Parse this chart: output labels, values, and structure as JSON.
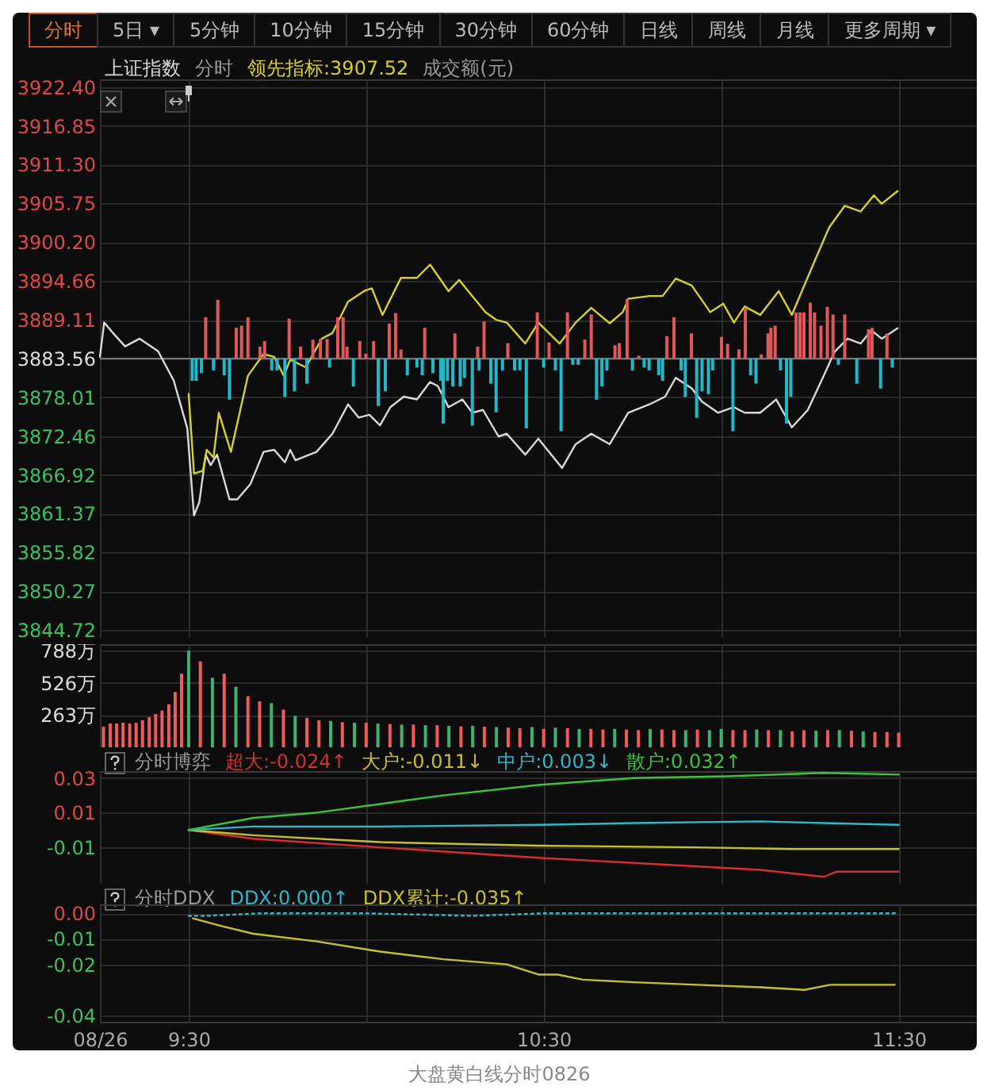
{
  "chart_data": [
    {
      "type": "other",
      "annotations": [
        "分时",
        "5日 ▾",
        "5分钟",
        "10分钟",
        "15分钟",
        "30分钟",
        "60分钟",
        "日线",
        "周线",
        "月线",
        "更多周期 ▾"
      ]
    },
    {
      "type": "line",
      "legend": "top left",
      "grid": true,
      "tick_labels": "y",
      "annotations": [
        "分时",
        "成交额(元)"
      ],
      "xlim": [
        9.25,
        11.72
      ],
      "xticks": [
        {
          "value": 9.25,
          "label": null
        },
        {
          "value": 9.5,
          "label": null
        },
        {
          "value": 10,
          "label": null
        },
        {
          "value": 10.5,
          "label": null
        },
        {
          "value": 11,
          "label": null
        },
        {
          "value": 11.5,
          "label": null
        }
      ],
      "ylim": [
        3843.6,
        3923.5
      ],
      "yticks": [
        {
          "value": 3922.4,
          "label": "3922.40"
        },
        {
          "value": 3916.85,
          "label": "3916.85"
        },
        {
          "value": 3911.3,
          "label": "3911.30"
        },
        {
          "value": 3905.75,
          "label": "3905.75"
        },
        {
          "value": 3900.2,
          "label": "3900.20"
        },
        {
          "value": 3894.66,
          "label": "3894.66"
        },
        {
          "value": 3889.11,
          "label": "3889.11"
        },
        {
          "value": 3883.56,
          "label": "3883.56"
        },
        {
          "value": 3878.01,
          "label": "3878.01"
        },
        {
          "value": 3872.46,
          "label": "3872.46"
        },
        {
          "value": 3866.92,
          "label": "3866.92"
        },
        {
          "value": 3861.37,
          "label": "3861.37"
        },
        {
          "value": 3855.82,
          "label": "3855.82"
        },
        {
          "value": 3850.27,
          "label": "3850.27"
        },
        {
          "value": 3844.72,
          "label": "3844.72"
        }
      ],
      "ref_lines": [
        {
          "axis": "y",
          "value": 3883.56,
          "color": "#777777"
        }
      ],
      "series": [
        {
          "type": "bar",
          "color": "#e0585a",
          "x": [
            9.548,
            9.582,
            9.634,
            9.649,
            9.667,
            9.701,
            9.714,
            9.783,
            9.815,
            9.85,
            9.871,
            9.89,
            9.92,
            9.935,
            9.946,
            9.982,
            9.999,
            10.021,
            10.065,
            10.083,
            10.098,
            10.165,
            10.25,
            10.314,
            10.332,
            10.399,
            10.482,
            10.515,
            10.567,
            10.616,
            10.634,
            10.701,
            10.713,
            10.735,
            10.768,
            10.847,
            10.867,
            10.916,
            11.001,
            11.018,
            11.05,
            11.068,
            11.113,
            11.132,
            11.14,
            11.152,
            11.211,
            11.222,
            11.233,
            11.251,
            11.263,
            11.281,
            11.299,
            11.315,
            11.348,
            11.415,
            11.425,
            11.467
          ],
          "base": [
            3883.56,
            3883.56,
            3883.56,
            3883.56,
            3883.56,
            3883.56,
            3883.56,
            3883.56,
            3883.56,
            3883.56,
            3883.56,
            3883.56,
            3883.56,
            3883.56,
            3883.56,
            3883.56,
            3883.56,
            3883.56,
            3883.56,
            3883.56,
            3883.56,
            3883.56,
            3883.56,
            3883.56,
            3883.56,
            3883.56,
            3883.56,
            3883.56,
            3883.56,
            3883.56,
            3883.56,
            3883.56,
            3883.56,
            3883.56,
            3883.56,
            3883.56,
            3883.56,
            3883.56,
            3883.56,
            3883.56,
            3883.56,
            3883.56,
            3883.56,
            3883.56,
            3883.56,
            3883.56,
            3883.56,
            3883.56,
            3883.56,
            3883.56,
            3883.56,
            3883.56,
            3883.56,
            3883.56,
            3883.56,
            3883.56,
            3883.56,
            3883.56
          ],
          "values": [
            5.9,
            8.4,
            4.4,
            4.7,
            5.9,
            1.7,
            2.5,
            5.7,
            1.7,
            2.7,
            2.8,
            2.8,
            5.9,
            5.9,
            1.7,
            2.5,
            0.7,
            2.5,
            5.0,
            6.5,
            1.3,
            4.4,
            3.6,
            1.7,
            5.3,
            2.2,
            6.6,
            2.3,
            6.6,
            2.7,
            6.3,
            1.9,
            2.2,
            8.5,
            0.4,
            3.2,
            5.9,
            3.6,
            3.1,
            2.1,
            1.3,
            7.2,
            0.6,
            3.6,
            4.4,
            4.7,
            6.6,
            6.6,
            6.6,
            8.0,
            6.6,
            4.7,
            7.4,
            6.3,
            6.3,
            4.2,
            4.4,
            3.6
          ]
        },
        {
          "type": "bar",
          "color": "#22b8c8",
          "x": [
            9.51,
            9.521,
            9.536,
            9.57,
            9.6,
            9.615,
            9.734,
            9.749,
            9.771,
            9.798,
            9.833,
            9.897,
            9.964,
            10.034,
            10.054,
            10.116,
            10.143,
            10.158,
            10.188,
            10.21,
            10.217,
            10.229,
            10.244,
            10.265,
            10.277,
            10.299,
            10.318,
            10.351,
            10.366,
            10.384,
            10.418,
            10.433,
            10.451,
            10.5,
            10.533,
            10.549,
            10.582,
            10.597,
            10.649,
            10.664,
            10.678,
            10.75,
            10.783,
            10.797,
            10.824,
            10.835,
            10.887,
            10.899,
            10.931,
            10.946,
            10.964,
            10.976,
            11.033,
            11.083,
            11.098,
            11.167,
            11.184,
            11.196,
            11.33,
            11.382,
            11.449,
            11.482
          ],
          "base": [
            3883.56,
            3883.56,
            3883.56,
            3883.56,
            3883.56,
            3883.56,
            3883.56,
            3883.56,
            3883.56,
            3883.56,
            3883.56,
            3883.56,
            3883.56,
            3883.56,
            3883.56,
            3883.56,
            3883.56,
            3883.56,
            3883.56,
            3883.56,
            3883.56,
            3883.56,
            3883.56,
            3883.56,
            3883.56,
            3883.56,
            3883.56,
            3883.56,
            3883.56,
            3883.56,
            3883.56,
            3883.56,
            3883.56,
            3883.56,
            3883.56,
            3883.56,
            3883.56,
            3883.56,
            3883.56,
            3883.56,
            3883.56,
            3883.56,
            3883.56,
            3883.56,
            3883.56,
            3883.56,
            3883.56,
            3883.56,
            3883.56,
            3883.56,
            3883.56,
            3883.56,
            3883.56,
            3883.56,
            3883.56,
            3883.56,
            3883.56,
            3883.56,
            3883.56,
            3883.56,
            3883.56,
            3883.56
          ],
          "values": [
            -3.2,
            -3.2,
            -2.1,
            -1.7,
            -2.4,
            -5.9,
            -1.7,
            -1.7,
            -5.5,
            -4.7,
            -3.6,
            -1.3,
            -4.0,
            -6.8,
            -4.7,
            -2.4,
            -1.3,
            -2.4,
            -2.1,
            -3.2,
            -9.3,
            -3.2,
            -4.0,
            -4.0,
            -2.8,
            -9.6,
            -1.7,
            -3.6,
            -7.7,
            -1.7,
            -1.7,
            -1.7,
            -10.0,
            -1.3,
            -1.7,
            -10.4,
            -0.9,
            -0.9,
            -5.9,
            -4.0,
            -1.7,
            -1.7,
            -1.3,
            -1.7,
            -2.4,
            -3.2,
            -1.7,
            -5.5,
            -8.5,
            -4.7,
            -5.1,
            -1.7,
            -10.4,
            -2.4,
            -3.6,
            -1.7,
            -9.3,
            -5.5,
            -0.9,
            -3.6,
            -4.3,
            -1.3
          ]
        },
        {
          "name": "上证指数",
          "color": "#d9d9d9",
          "x": [
            9.25,
            9.262,
            9.287,
            9.321,
            9.362,
            9.414,
            9.458,
            9.496,
            9.515,
            9.53,
            9.548,
            9.562,
            9.58,
            9.615,
            9.637,
            9.674,
            9.711,
            9.741,
            9.771,
            9.786,
            9.801,
            9.86,
            9.905,
            9.949,
            9.979,
            10.009,
            10.039,
            10.068,
            10.106,
            10.143,
            10.18,
            10.202,
            10.232,
            10.271,
            10.299,
            10.329,
            10.373,
            10.396,
            10.448,
            10.485,
            10.552,
            10.59,
            10.634,
            10.686,
            10.738,
            10.798,
            10.842,
            10.872,
            10.917,
            10.946,
            10.991,
            11.036,
            11.066,
            11.11,
            11.155,
            11.199,
            11.244,
            11.289,
            11.319,
            11.356,
            11.393,
            11.423,
            11.452,
            11.497
          ],
          "values": [
            3883.8,
            3888.7,
            3887.2,
            3885.3,
            3886.4,
            3884.6,
            3880.4,
            3873.6,
            3861.1,
            3863.0,
            3869.8,
            3868.3,
            3869.8,
            3863.4,
            3863.4,
            3865.6,
            3870.2,
            3870.5,
            3868.7,
            3870.5,
            3869.0,
            3870.2,
            3872.8,
            3877.0,
            3875.1,
            3875.5,
            3874.0,
            3876.6,
            3878.1,
            3877.7,
            3880.2,
            3879.6,
            3876.6,
            3877.7,
            3875.8,
            3876.2,
            3872.4,
            3872.8,
            3869.8,
            3872.1,
            3867.9,
            3871.3,
            3872.8,
            3871.3,
            3875.8,
            3877.0,
            3878.1,
            3880.8,
            3879.3,
            3877.4,
            3875.8,
            3876.6,
            3875.8,
            3875.8,
            3877.7,
            3873.7,
            3876.2,
            3881.1,
            3884.5,
            3886.4,
            3885.7,
            3887.6,
            3886.4,
            3887.9
          ]
        },
        {
          "name": "领先指标:3907.52",
          "color": "#d8d02a",
          "x": [
            9.5,
            9.515,
            9.54,
            9.551,
            9.57,
            9.585,
            9.619,
            9.667,
            9.711,
            9.741,
            9.768,
            9.786,
            9.83,
            9.875,
            9.905,
            9.949,
            9.994,
            10.016,
            10.046,
            10.098,
            10.143,
            10.18,
            10.232,
            10.262,
            10.299,
            10.336,
            10.366,
            10.396,
            10.448,
            10.485,
            10.545,
            10.59,
            10.634,
            10.686,
            10.723,
            10.738,
            10.798,
            10.835,
            10.872,
            10.917,
            10.969,
            11.006,
            11.036,
            11.066,
            11.11,
            11.162,
            11.199,
            11.259,
            11.304,
            11.348,
            11.393,
            11.43,
            11.452,
            11.497
          ],
          "values": [
            3878.5,
            3867.1,
            3867.5,
            3870.5,
            3869.4,
            3875.8,
            3870.2,
            3881.1,
            3884.2,
            3883.8,
            3881.1,
            3883.4,
            3882.3,
            3886.4,
            3887.2,
            3891.7,
            3893.2,
            3893.6,
            3889.8,
            3895.1,
            3895.1,
            3897.0,
            3893.2,
            3894.8,
            3892.5,
            3890.2,
            3889.1,
            3888.7,
            3885.7,
            3888.7,
            3885.7,
            3888.7,
            3890.8,
            3888.6,
            3890.2,
            3892.1,
            3892.5,
            3892.5,
            3895.0,
            3894.0,
            3890.2,
            3891.4,
            3888.7,
            3891.0,
            3889.8,
            3893.2,
            3889.8,
            3897.0,
            3902.3,
            3905.4,
            3904.6,
            3906.9,
            3905.7,
            3907.52
          ]
        }
      ]
    },
    {
      "type": "bar",
      "grid": true,
      "tick_labels": "y",
      "xlim": [
        9.25,
        11.72
      ],
      "xticks": [
        {
          "value": 9.25,
          "label": null
        },
        {
          "value": 9.5,
          "label": null
        },
        {
          "value": 10,
          "label": null
        },
        {
          "value": 10.5,
          "label": null
        },
        {
          "value": 11,
          "label": null
        },
        {
          "value": 11.5,
          "label": null
        }
      ],
      "ylim": [
        0,
        840
      ],
      "yticks": [
        {
          "value": 263,
          "label": "263万"
        },
        {
          "value": 526,
          "label": "526万"
        },
        {
          "value": 788,
          "label": "788万"
        }
      ],
      "x": [
        9.26,
        9.279,
        9.297,
        9.315,
        9.334,
        9.352,
        9.37,
        9.389,
        9.407,
        9.425,
        9.444,
        9.462,
        9.48,
        9.5,
        9.533,
        9.567,
        9.6,
        9.633,
        9.667,
        9.7,
        9.733,
        9.767,
        9.8,
        9.833,
        9.867,
        9.9,
        9.933,
        9.967,
        10,
        10.033,
        10.067,
        10.1,
        10.133,
        10.167,
        10.2,
        10.233,
        10.267,
        10.3,
        10.333,
        10.367,
        10.4,
        10.433,
        10.467,
        10.5,
        10.533,
        10.567,
        10.6,
        10.633,
        10.667,
        10.7,
        10.733,
        10.767,
        10.8,
        10.833,
        10.867,
        10.9,
        10.933,
        10.967,
        11,
        11.033,
        11.067,
        11.1,
        11.133,
        11.167,
        11.2,
        11.233,
        11.267,
        11.3,
        11.333,
        11.367,
        11.4,
        11.433,
        11.467,
        11.5
      ],
      "values": [
        168,
        194,
        194,
        200,
        194,
        200,
        220,
        245,
        271,
        300,
        350,
        450,
        600,
        788,
        700,
        566,
        599,
        493,
        416,
        375,
        359,
        307,
        255,
        240,
        220,
        215,
        205,
        200,
        200,
        194,
        190,
        185,
        185,
        180,
        180,
        175,
        170,
        175,
        168,
        165,
        160,
        155,
        165,
        150,
        160,
        155,
        150,
        150,
        145,
        150,
        145,
        140,
        150,
        145,
        140,
        140,
        145,
        140,
        150,
        140,
        140,
        145,
        140,
        140,
        130,
        140,
        135,
        140,
        140,
        135,
        130,
        125,
        125,
        120
      ],
      "colors": [
        "#f05a5a",
        "#f05a5a",
        "#f05a5a",
        "#f05a5a",
        "#f05a5a",
        "#f05a5a",
        "#f05a5a",
        "#f05a5a",
        "#f05a5a",
        "#f05a5a",
        "#f05a5a",
        "#f05a5a",
        "#f05a5a",
        "#3cb371",
        "#f05a5a",
        "#3cb371",
        "#f05a5a",
        "#3cb371",
        "#f05a5a",
        "#f05a5a",
        "#3cb371",
        "#f05a5a",
        "#3cb371",
        "#f05a5a",
        "#f05a5a",
        "#3cb371",
        "#f05a5a",
        "#3cb371",
        "#f05a5a",
        "#3cb371",
        "#f05a5a",
        "#3cb371",
        "#f05a5a",
        "#3cb371",
        "#f05a5a",
        "#3cb371",
        "#f05a5a",
        "#3cb371",
        "#f05a5a",
        "#3cb371",
        "#f05a5a",
        "#f05a5a",
        "#3cb371",
        "#f05a5a",
        "#3cb371",
        "#f05a5a",
        "#3cb371",
        "#f05a5a",
        "#f05a5a",
        "#3cb371",
        "#f05a5a",
        "#f05a5a",
        "#3cb371",
        "#f05a5a",
        "#f05a5a",
        "#3cb371",
        "#f05a5a",
        "#3cb371",
        "#3cb371",
        "#f05a5a",
        "#f05a5a",
        "#3cb371",
        "#f05a5a",
        "#3cb371",
        "#f05a5a",
        "#f05a5a",
        "#3cb371",
        "#f05a5a",
        "#3cb371",
        "#f05a5a",
        "#3cb371",
        "#f05a5a",
        "#f05a5a",
        "#f05a5a"
      ]
    },
    {
      "type": "line",
      "title": "分时博弈",
      "legend": "top left",
      "grid": true,
      "tick_labels": "y",
      "xlim": [
        9.25,
        11.72
      ],
      "xticks": [
        {
          "value": 9.25,
          "label": null
        },
        {
          "value": 9.5,
          "label": null
        },
        {
          "value": 10,
          "label": null
        },
        {
          "value": 10.5,
          "label": null
        },
        {
          "value": 11,
          "label": null
        },
        {
          "value": 11.5,
          "label": null
        }
      ],
      "ylim": [
        -0.031,
        0.034
      ],
      "yticks": [
        0.03,
        0.01,
        -0.01
      ],
      "series": [
        {
          "name": "超大:-0.024↑",
          "color": "#d62f2f",
          "x": [
            9.5,
            9.682,
            10.039,
            10.485,
            10.753,
            11.11,
            11.289,
            11.325,
            11.5
          ],
          "values": [
            0,
            -0.005,
            -0.01,
            -0.016,
            -0.019,
            -0.023,
            -0.027,
            -0.024,
            -0.024
          ]
        },
        {
          "name": "大户:-0.011↓",
          "color": "#c8c02a",
          "x": [
            9.5,
            9.682,
            10.039,
            10.485,
            10.932,
            11.2,
            11.5
          ],
          "values": [
            0,
            -0.003,
            -0.007,
            -0.009,
            -0.01,
            -0.011,
            -0.011
          ]
        },
        {
          "name": "中户:0.003↓",
          "color": "#2fb8c8",
          "x": [
            9.5,
            9.682,
            10.039,
            10.485,
            10.753,
            11.11,
            11.289,
            11.5
          ],
          "values": [
            0,
            0.002,
            0.002,
            0.003,
            0.004,
            0.005,
            0.004,
            0.003
          ]
        },
        {
          "name": "散户:0.032↑",
          "color": "#3cc43c",
          "x": [
            9.5,
            9.682,
            9.86,
            10.039,
            10.217,
            10.485,
            10.753,
            11.021,
            11.289,
            11.5
          ],
          "values": [
            0,
            0.007,
            0.01,
            0.015,
            0.02,
            0.026,
            0.03,
            0.031,
            0.033,
            0.032
          ]
        }
      ]
    },
    {
      "type": "line",
      "title": "分时DDX",
      "legend": "top left",
      "grid": true,
      "annotations": [
        "大盘黄白线分时0826"
      ],
      "xlim": [
        9.25,
        11.72
      ],
      "xticks": [
        {
          "value": 9.25,
          "label": "08/26"
        },
        {
          "value": 9.5,
          "label": "9:30"
        },
        {
          "value": 10,
          "label": null
        },
        {
          "value": 10.5,
          "label": "10:30"
        },
        {
          "value": 11,
          "label": null
        },
        {
          "value": 11.5,
          "label": "11:30"
        }
      ],
      "ylim": [
        -0.0425,
        0.0035
      ],
      "yticks": [
        {
          "value": 0,
          "label": "0.00"
        },
        -0.01,
        -0.02,
        -0.04
      ],
      "series": [
        {
          "name": "DDX:0.000↑",
          "color": "#2fb8c8",
          "line_style": "dotted",
          "x": [
            9.5,
            9.55,
            9.7,
            10,
            10.3,
            10.5,
            11,
            11.5
          ],
          "values": [
            -0.001,
            -0.001,
            0,
            0,
            -0.001,
            0,
            0,
            0
          ]
        },
        {
          "name": "DDX累计:-0.035↑",
          "color": "#c8c02a",
          "x": [
            9.512,
            9.593,
            9.682,
            9.86,
            10.039,
            10.217,
            10.396,
            10.485,
            10.539,
            10.61,
            10.753,
            10.932,
            11.11,
            11.235,
            11.307,
            11.489
          ],
          "values": [
            -0.002,
            -0.005,
            -0.008,
            -0.011,
            -0.015,
            -0.018,
            -0.02,
            -0.024,
            -0.024,
            -0.026,
            -0.027,
            -0.028,
            -0.029,
            -0.03,
            -0.028,
            -0.028
          ]
        }
      ]
    }
  ]
}
